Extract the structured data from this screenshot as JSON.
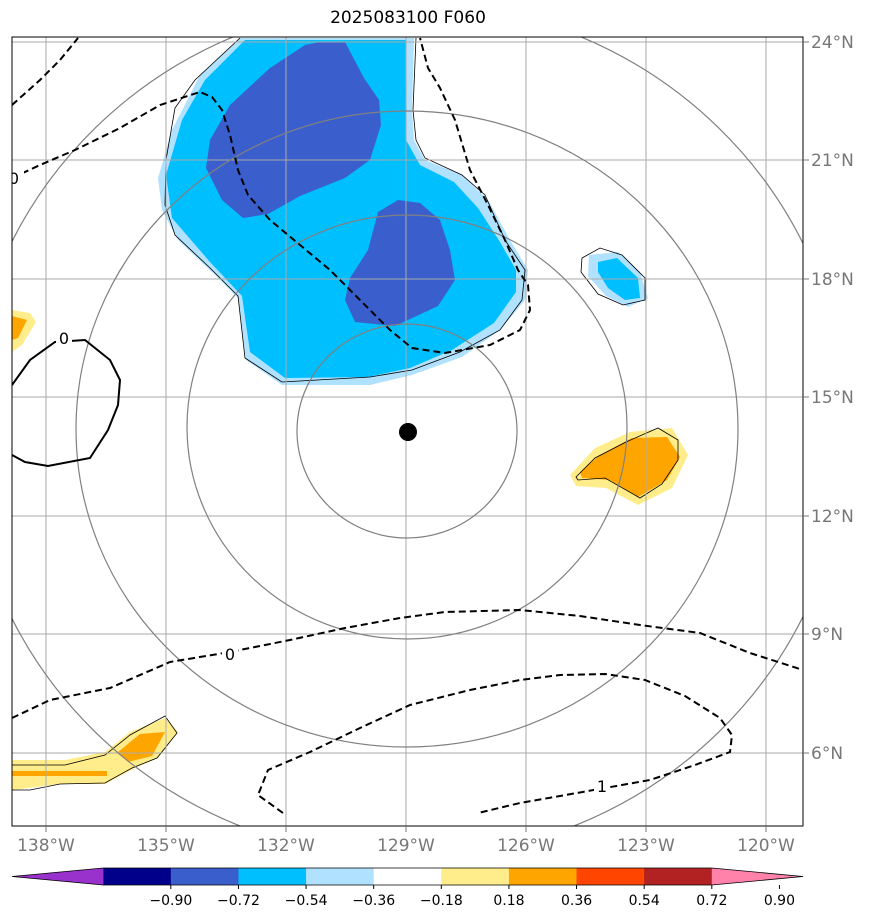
{
  "title": "2025083100 F060",
  "lon_ticks": [
    "138°W",
    "135°W",
    "132°W",
    "129°W",
    "126°W",
    "123°W",
    "120°W"
  ],
  "lat_ticks": [
    "24°N",
    "21°N",
    "18°N",
    "15°N",
    "12°N",
    "9°N",
    "6°N"
  ],
  "center_marker": {
    "lon": -128.9,
    "lat": 14.1
  },
  "contour_labels": [
    "0",
    "0",
    "0",
    "1"
  ],
  "colorbar": {
    "ticks": [
      "−0.90",
      "−0.72",
      "−0.54",
      "−0.36",
      "−0.18",
      "0.18",
      "0.36",
      "0.54",
      "0.72",
      "0.90"
    ],
    "colors": [
      "#9932CC",
      "#00008B",
      "#3A5FCD",
      "#00BFFF",
      "#B0E2FF",
      "#FFFFFF",
      "#FFEC8B",
      "#FFA500",
      "#FF4500",
      "#B22222",
      "#FF82AB"
    ]
  },
  "colors": {
    "dark_blue": "#3A5FCD",
    "blue": "#00BFFF",
    "light_blue": "#B0E2FF",
    "yellow": "#FFEC8B",
    "orange": "#FFA500",
    "grid": "#AAAAAA",
    "rings": "#808080"
  }
}
